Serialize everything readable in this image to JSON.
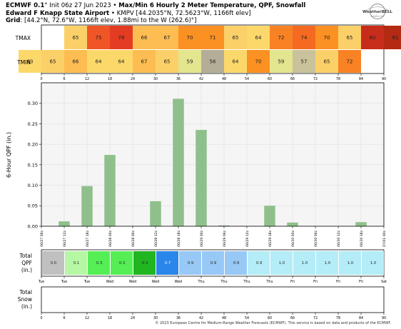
{
  "header": {
    "l1a": "ECMWF 0.1",
    "l1b": "° Init 06z 27 Jun 2023 • ",
    "l1c": "Max/Min 6 Hourly 2 Meter Temperature, QPF, Snowfall",
    "l2a": "Edward F Knapp State Airport",
    "l2b": " • KMPV [44.2035°N, 72.5623°W, 1166ft elev]",
    "l3a": "Grid",
    "l3b": ": [44.2°N, 72.6°W, 1166ft elev, 1.88mi to the W (262.6)°]"
  },
  "logo": {
    "text": "WeatherBELL",
    "subtext": "Analytics LLC"
  },
  "footer": {
    "text": "© 2023 European Centre for Medium-Range Weather Forecasts (ECMWF). This service is based on data and products of the ECMWF."
  },
  "chart_data": [
    {
      "type": "heatmap",
      "rows": [
        "TMAX",
        "TMIN"
      ],
      "tmax": [
        {
          "v": "65",
          "h": 12
        },
        {
          "v": "75",
          "h": 18
        },
        {
          "v": "78",
          "h": 24
        },
        {
          "v": "66",
          "h": 30
        },
        {
          "v": "67",
          "h": 36
        },
        {
          "v": "70",
          "h": 42
        },
        {
          "v": "71",
          "h": 48
        },
        {
          "v": "65",
          "h": 54
        },
        {
          "v": "64",
          "h": 60
        },
        {
          "v": "72",
          "h": 66
        },
        {
          "v": "74",
          "h": 72
        },
        {
          "v": "70",
          "h": 78
        },
        {
          "v": "65",
          "h": 84
        },
        {
          "v": "80",
          "h": 90
        },
        {
          "v": "81",
          "h": 96
        }
      ],
      "tmin": [
        {
          "v": "63",
          "h": 0
        },
        {
          "v": "65",
          "h": 6
        },
        {
          "v": "66",
          "h": 12
        },
        {
          "v": "64",
          "h": 18
        },
        {
          "v": "64",
          "h": 24
        },
        {
          "v": "67",
          "h": 30
        },
        {
          "v": "65",
          "h": 36
        },
        {
          "v": "59",
          "h": 42
        },
        {
          "v": "56",
          "h": 48
        },
        {
          "v": "64",
          "h": 54
        },
        {
          "v": "70",
          "h": 60
        },
        {
          "v": "59",
          "h": 66
        },
        {
          "v": "57",
          "h": 72
        },
        {
          "v": "65",
          "h": 78
        },
        {
          "v": "72",
          "h": 84
        }
      ],
      "xticks": [
        "0",
        "6",
        "12",
        "18",
        "24",
        "30",
        "36",
        "42",
        "48",
        "54",
        "60",
        "66",
        "72",
        "78",
        "84",
        "90"
      ],
      "xlim": [
        0,
        90
      ]
    },
    {
      "type": "bar",
      "ylabel": "6-Hour QPF (in.)",
      "ylim": [
        0,
        0.35
      ],
      "yticks": [
        "0.00",
        "0.05",
        "0.10",
        "0.15",
        "0.20",
        "0.25",
        "0.30"
      ],
      "x": [
        6,
        12,
        18,
        30,
        36,
        42,
        48,
        60,
        66,
        84
      ],
      "values": [
        0.012,
        0.098,
        0.174,
        0.061,
        0.311,
        0.235,
        0.002,
        0.05,
        0.009,
        0.01
      ],
      "date_labels": [
        "06/27 06z",
        "06/27 12z",
        "06/27 18z",
        "06/28 00z",
        "06/28 06z",
        "06/28 12z",
        "06/28 18z",
        "06/29 00z",
        "06/29 06z",
        "06/29 12z",
        "06/29 18z",
        "06/30 00z",
        "06/30 06z",
        "06/30 12z",
        "06/30 18z",
        "07/01 00z"
      ],
      "grid": true
    },
    {
      "type": "heatmap",
      "ylabel": "Total QPF (in.)",
      "ylabel_lines": [
        "Total",
        "QPF",
        "(in.)"
      ],
      "cells": [
        {
          "v": "0.0",
          "h": 0,
          "c": "#c0c0c0"
        },
        {
          "v": "0.1",
          "h": 6,
          "c": "#b6f7a4"
        },
        {
          "v": "0.3",
          "h": 12,
          "c": "#55ee55"
        },
        {
          "v": "0.3",
          "h": 18,
          "c": "#55ee55"
        },
        {
          "v": "0.3",
          "h": 24,
          "c": "#21b521"
        },
        {
          "v": "0.7",
          "h": 30,
          "c": "#2a86ea"
        },
        {
          "v": "0.9",
          "h": 36,
          "c": "#98c8f5"
        },
        {
          "v": "0.9",
          "h": 42,
          "c": "#98c8f5"
        },
        {
          "v": "0.9",
          "h": 48,
          "c": "#98c8f5"
        },
        {
          "v": "0.9",
          "h": 54,
          "c": "#b4edf7"
        },
        {
          "v": "1.0",
          "h": 60,
          "c": "#b4edf7"
        },
        {
          "v": "1.0",
          "h": 66,
          "c": "#b4edf7"
        },
        {
          "v": "1.0",
          "h": 72,
          "c": "#b4edf7"
        },
        {
          "v": "1.0",
          "h": 78,
          "c": "#b4edf7"
        },
        {
          "v": "1.0",
          "h": 84,
          "c": "#b4edf7"
        }
      ],
      "days": [
        "Tue",
        "Tue",
        "Tue",
        "Wed",
        "Wed",
        "Wed",
        "Wed",
        "Thu",
        "Thu",
        "Thu",
        "Thu",
        "Fri",
        "Fri",
        "Fri",
        "Fri",
        "Sat"
      ]
    },
    {
      "type": "heatmap",
      "ylabel": "Total Snow (in.)",
      "ylabel_lines": [
        "Total",
        "Snow",
        "(in.)"
      ],
      "cells": [],
      "xticks": [
        "0",
        "6",
        "12",
        "18",
        "24",
        "30",
        "36",
        "42",
        "48",
        "54",
        "60",
        "66",
        "72",
        "78",
        "84",
        "90"
      ]
    }
  ]
}
